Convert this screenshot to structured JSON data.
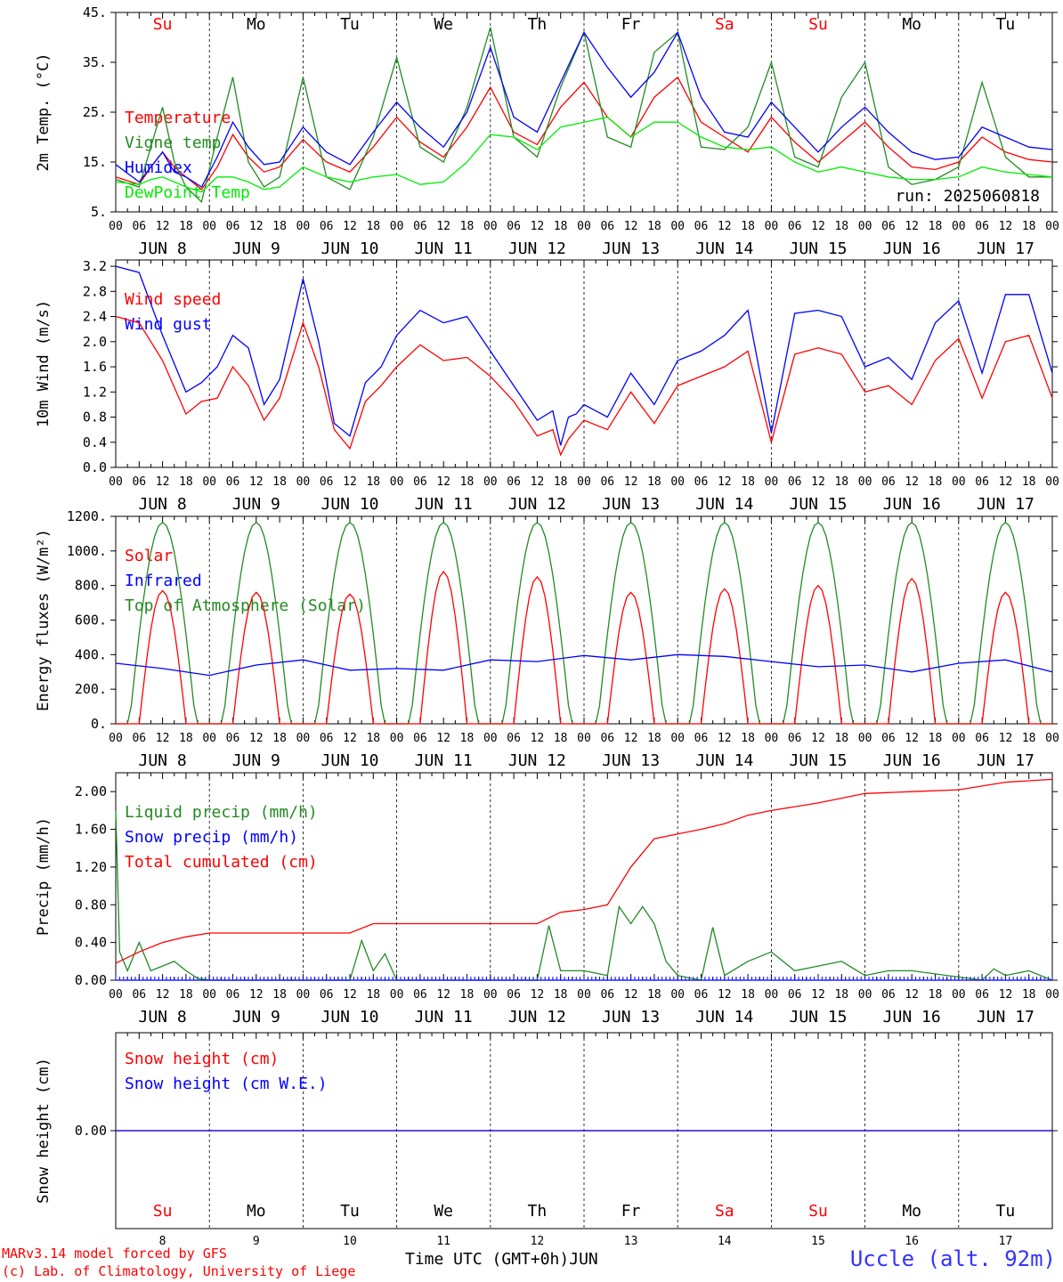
{
  "days": [
    "Su",
    "Mo",
    "Tu",
    "We",
    "Th",
    "Fr",
    "Sa",
    "Su",
    "Mo",
    "Tu"
  ],
  "day_colors": [
    "#ff0000",
    "#000000",
    "#000000",
    "#000000",
    "#000000",
    "#000000",
    "#ff0000",
    "#ff0000",
    "#000000",
    "#000000"
  ],
  "dates": [
    "JUN  8",
    "JUN  9",
    "JUN 10",
    "JUN 11",
    "JUN 12",
    "JUN 13",
    "JUN 14",
    "JUN 15",
    "JUN 16",
    "JUN 17"
  ],
  "date_numbers": [
    "8",
    "9",
    "10",
    "11",
    "12",
    "13",
    "14",
    "15",
    "16",
    "17"
  ],
  "hour_labels": [
    "00",
    "06",
    "12",
    "18"
  ],
  "run_label": "run: 2025060818",
  "footer": {
    "model_line": "MARv3.14 model forced by GFS",
    "lab_line": "(c) Lab. of Climatology, University of Liege",
    "time_axis": "Time UTC (GMT+0h)",
    "month": "JUN",
    "station": "Uccle (alt. 92m)"
  },
  "chart_data": [
    {
      "type": "line",
      "ylabel": "2m Temp. (°C)",
      "ylim": [
        5,
        45
      ],
      "yticks": [
        5,
        15,
        25,
        35,
        45
      ],
      "ytick_labels": [
        "5.",
        "15.",
        "25.",
        "35.",
        "45."
      ],
      "x_unit": "hours since 2025-06-08 00 UTC",
      "series": [
        {
          "name": "Temperature",
          "color": "#ff0000",
          "x": [
            0,
            6,
            9,
            12,
            15,
            18,
            22,
            26,
            30,
            34,
            38,
            42,
            48,
            54,
            60,
            66,
            72,
            78,
            84,
            90,
            96,
            102,
            108,
            114,
            120,
            126,
            132,
            138,
            144,
            150,
            156,
            162,
            168,
            174,
            180,
            186,
            192,
            198,
            204,
            210,
            216,
            222,
            228,
            234,
            240
          ],
          "y": [
            12,
            10.5,
            14,
            17,
            14,
            12,
            9.5,
            14,
            20.5,
            16,
            13,
            14,
            19.5,
            15,
            13,
            18,
            24,
            19,
            16,
            22,
            30,
            21,
            18.5,
            26,
            31,
            24,
            20,
            28,
            32,
            23,
            20,
            17,
            24,
            19,
            15,
            19,
            23,
            18,
            14,
            13.5,
            15,
            20,
            17,
            15.5,
            15
          ]
        },
        {
          "name": "Vigne temp",
          "color": "#228b22",
          "x": [
            0,
            6,
            9,
            12,
            15,
            18,
            22,
            26,
            30,
            34,
            38,
            42,
            48,
            54,
            60,
            66,
            72,
            78,
            84,
            90,
            96,
            102,
            108,
            114,
            120,
            126,
            132,
            138,
            144,
            150,
            156,
            162,
            168,
            174,
            180,
            186,
            192,
            198,
            204,
            210,
            216,
            222,
            228,
            234,
            240
          ],
          "y": [
            11.5,
            10,
            18,
            26,
            15,
            10,
            7,
            20,
            32,
            15,
            10,
            12,
            32,
            12,
            9.5,
            20,
            36,
            18,
            15,
            26,
            42,
            20,
            16,
            30,
            41,
            20,
            18,
            37,
            41,
            18,
            17.5,
            22,
            35,
            16,
            14,
            28,
            35,
            14,
            10.5,
            11.5,
            14,
            31,
            16,
            12,
            12
          ]
        },
        {
          "name": "Humidex",
          "color": "#0000ff",
          "x": [
            0,
            6,
            9,
            12,
            15,
            18,
            22,
            26,
            30,
            34,
            38,
            42,
            48,
            54,
            60,
            66,
            72,
            78,
            84,
            90,
            96,
            102,
            108,
            114,
            120,
            126,
            132,
            138,
            144,
            150,
            156,
            162,
            168,
            174,
            180,
            186,
            192,
            198,
            204,
            210,
            216,
            222,
            228,
            234,
            240
          ],
          "y": [
            14.5,
            11,
            14,
            17,
            13,
            12,
            10,
            16,
            23,
            18,
            14.5,
            15,
            22,
            17,
            14.5,
            21,
            27,
            22,
            18,
            25,
            38,
            24,
            21,
            31,
            41,
            34,
            28,
            33,
            41,
            28,
            21,
            20,
            27,
            22,
            17,
            22,
            26,
            21,
            17,
            15.5,
            16,
            22,
            20,
            18,
            17.5
          ]
        },
        {
          "name": "DewPoint Temp",
          "color": "#00ee00",
          "x": [
            0,
            6,
            9,
            12,
            15,
            18,
            22,
            26,
            30,
            34,
            38,
            42,
            48,
            54,
            60,
            66,
            72,
            78,
            84,
            90,
            96,
            102,
            108,
            114,
            120,
            126,
            132,
            138,
            144,
            150,
            156,
            162,
            168,
            174,
            180,
            186,
            192,
            198,
            204,
            210,
            216,
            222,
            228,
            234,
            240
          ],
          "y": [
            11,
            10.5,
            11.5,
            12,
            11,
            10,
            9,
            12,
            12,
            11,
            9.5,
            10,
            14,
            12,
            11,
            12,
            12.5,
            10.5,
            11,
            15,
            20.5,
            20,
            17.5,
            22,
            23,
            24,
            20,
            23,
            23,
            20,
            18,
            17.5,
            18,
            15,
            13,
            14,
            13,
            12,
            11.5,
            11.5,
            12,
            14,
            13,
            12.5,
            12
          ]
        }
      ]
    },
    {
      "type": "line",
      "ylabel": "10m Wind (m/s)",
      "ylim": [
        0,
        3.3
      ],
      "yticks": [
        0,
        0.4,
        0.8,
        1.2,
        1.6,
        2.0,
        2.4,
        2.8,
        3.2
      ],
      "ytick_labels": [
        "0.0",
        "0.4",
        "0.8",
        "1.2",
        "1.6",
        "2.0",
        "2.4",
        "2.8",
        "3.2"
      ],
      "x_unit": "hours since 2025-06-08 00 UTC",
      "series": [
        {
          "name": "Wind speed",
          "color": "#ff0000",
          "x": [
            0,
            6,
            12,
            18,
            22,
            26,
            30,
            34,
            38,
            42,
            48,
            52,
            56,
            60,
            64,
            68,
            72,
            78,
            84,
            90,
            96,
            102,
            108,
            112,
            114,
            116,
            118,
            120,
            126,
            132,
            138,
            144,
            150,
            156,
            162,
            168,
            174,
            180,
            186,
            192,
            198,
            204,
            210,
            216,
            222,
            228,
            234,
            240
          ],
          "y": [
            2.4,
            2.3,
            1.7,
            0.85,
            1.05,
            1.1,
            1.6,
            1.3,
            0.75,
            1.1,
            2.3,
            1.6,
            0.6,
            0.3,
            1.05,
            1.3,
            1.6,
            1.95,
            1.7,
            1.75,
            1.45,
            1.05,
            0.5,
            0.6,
            0.2,
            0.45,
            0.6,
            0.75,
            0.6,
            1.2,
            0.7,
            1.3,
            1.45,
            1.6,
            1.85,
            0.4,
            1.8,
            1.9,
            1.8,
            1.2,
            1.3,
            1.0,
            1.7,
            2.05,
            1.1,
            2.0,
            2.1,
            1.1
          ]
        },
        {
          "name": "Wind gust",
          "color": "#0000ff",
          "x": [
            0,
            6,
            12,
            18,
            22,
            26,
            30,
            34,
            38,
            42,
            48,
            52,
            56,
            60,
            64,
            68,
            72,
            78,
            84,
            90,
            96,
            102,
            108,
            112,
            114,
            116,
            118,
            120,
            126,
            132,
            138,
            144,
            150,
            156,
            162,
            168,
            174,
            180,
            186,
            192,
            198,
            204,
            210,
            216,
            222,
            228,
            234,
            240
          ],
          "y": [
            3.2,
            3.1,
            2.1,
            1.2,
            1.35,
            1.6,
            2.1,
            1.9,
            1.0,
            1.4,
            3.0,
            2.0,
            0.7,
            0.5,
            1.35,
            1.6,
            2.1,
            2.5,
            2.3,
            2.4,
            1.85,
            1.3,
            0.75,
            0.9,
            0.35,
            0.8,
            0.85,
            1.0,
            0.8,
            1.5,
            1.0,
            1.7,
            1.85,
            2.1,
            2.5,
            0.55,
            2.45,
            2.5,
            2.4,
            1.6,
            1.75,
            1.4,
            2.3,
            2.65,
            1.5,
            2.75,
            2.75,
            1.5
          ]
        }
      ]
    },
    {
      "type": "line",
      "ylabel": "Energy fluxes (W/m²)",
      "ylim": [
        0,
        1200
      ],
      "yticks": [
        0,
        200,
        400,
        600,
        800,
        1000,
        1200
      ],
      "ytick_labels": [
        "0.",
        "200.",
        "400.",
        "600.",
        "800.",
        "1000.",
        "1200."
      ],
      "x_unit": "hours since 2025-06-08 00 UTC",
      "daily_peaks": {
        "Top of Atmosphere (Solar)": [
          1165,
          1165,
          1165,
          1165,
          1165,
          1165,
          1165,
          1165,
          1165,
          1165
        ],
        "Solar": [
          770,
          760,
          750,
          880,
          850,
          760,
          780,
          800,
          840,
          760
        ]
      },
      "series": [
        {
          "name": "Solar",
          "color": "#ff0000"
        },
        {
          "name": "Infrared",
          "color": "#0000ff",
          "x": [
            0,
            12,
            24,
            36,
            48,
            60,
            72,
            84,
            96,
            108,
            120,
            132,
            144,
            156,
            168,
            180,
            192,
            204,
            216,
            228,
            240
          ],
          "y": [
            350,
            320,
            280,
            340,
            370,
            310,
            320,
            310,
            370,
            360,
            395,
            370,
            400,
            390,
            360,
            330,
            340,
            300,
            350,
            370,
            300
          ]
        },
        {
          "name": "Top of Atmosphere (Solar)",
          "color": "#228b22"
        }
      ]
    },
    {
      "type": "line",
      "ylabel": "Precip (mm/h)",
      "ylim": [
        0,
        2.2
      ],
      "yticks": [
        0,
        0.4,
        0.8,
        1.2,
        1.6,
        2.0
      ],
      "ytick_labels": [
        "0.00",
        "0.40",
        "0.80",
        "1.20",
        "1.60",
        "2.00"
      ],
      "x_unit": "hours since 2025-06-08 00 UTC",
      "series": [
        {
          "name": "Liquid precip (mm/h)",
          "color": "#228b22",
          "x": [
            0,
            1,
            3,
            6,
            9,
            12,
            15,
            18,
            21,
            24,
            60,
            63,
            66,
            69,
            72,
            108,
            111,
            114,
            120,
            126,
            129,
            132,
            135,
            138,
            141,
            144,
            150,
            153,
            156,
            162,
            168,
            174,
            180,
            186,
            192,
            198,
            204,
            222,
            225,
            228,
            234,
            240
          ],
          "y": [
            1.8,
            0.3,
            0.1,
            0.4,
            0.1,
            0.15,
            0.2,
            0.1,
            0.02,
            0,
            0,
            0.42,
            0.1,
            0.28,
            0,
            0,
            0.58,
            0.1,
            0.1,
            0.05,
            0.78,
            0.6,
            0.78,
            0.6,
            0.2,
            0.05,
            0,
            0.56,
            0.05,
            0.2,
            0.3,
            0.1,
            0.15,
            0.2,
            0.05,
            0.1,
            0.1,
            0.0,
            0.12,
            0.05,
            0.1,
            0
          ]
        },
        {
          "name": "Snow precip (mm/h)",
          "color": "#0000ff",
          "x": [
            0,
            240
          ],
          "y": [
            0,
            0
          ]
        },
        {
          "name": "Total cumulated (cm)",
          "color": "#ff0000",
          "x": [
            0,
            6,
            12,
            18,
            24,
            36,
            48,
            60,
            66,
            72,
            84,
            96,
            108,
            114,
            120,
            126,
            132,
            138,
            144,
            150,
            156,
            162,
            168,
            180,
            192,
            204,
            216,
            228,
            240
          ],
          "y": [
            0.18,
            0.3,
            0.4,
            0.46,
            0.5,
            0.5,
            0.5,
            0.5,
            0.6,
            0.6,
            0.6,
            0.6,
            0.6,
            0.72,
            0.75,
            0.8,
            1.2,
            1.5,
            1.55,
            1.6,
            1.66,
            1.75,
            1.8,
            1.88,
            1.98,
            2.0,
            2.02,
            2.1,
            2.13
          ]
        }
      ]
    },
    {
      "type": "line",
      "ylabel": "Snow height (cm)",
      "ylim": [
        -1,
        1
      ],
      "yticks": [
        0
      ],
      "ytick_labels": [
        "0.00"
      ],
      "x_unit": "hours since 2025-06-08 00 UTC",
      "series": [
        {
          "name": "Snow height (cm)",
          "color": "#ff0000",
          "x": [
            0,
            240
          ],
          "y": [
            0,
            0
          ]
        },
        {
          "name": "Snow height (cm W.E.)",
          "color": "#0000ff",
          "x": [
            0,
            240
          ],
          "y": [
            0,
            0
          ]
        }
      ]
    }
  ]
}
